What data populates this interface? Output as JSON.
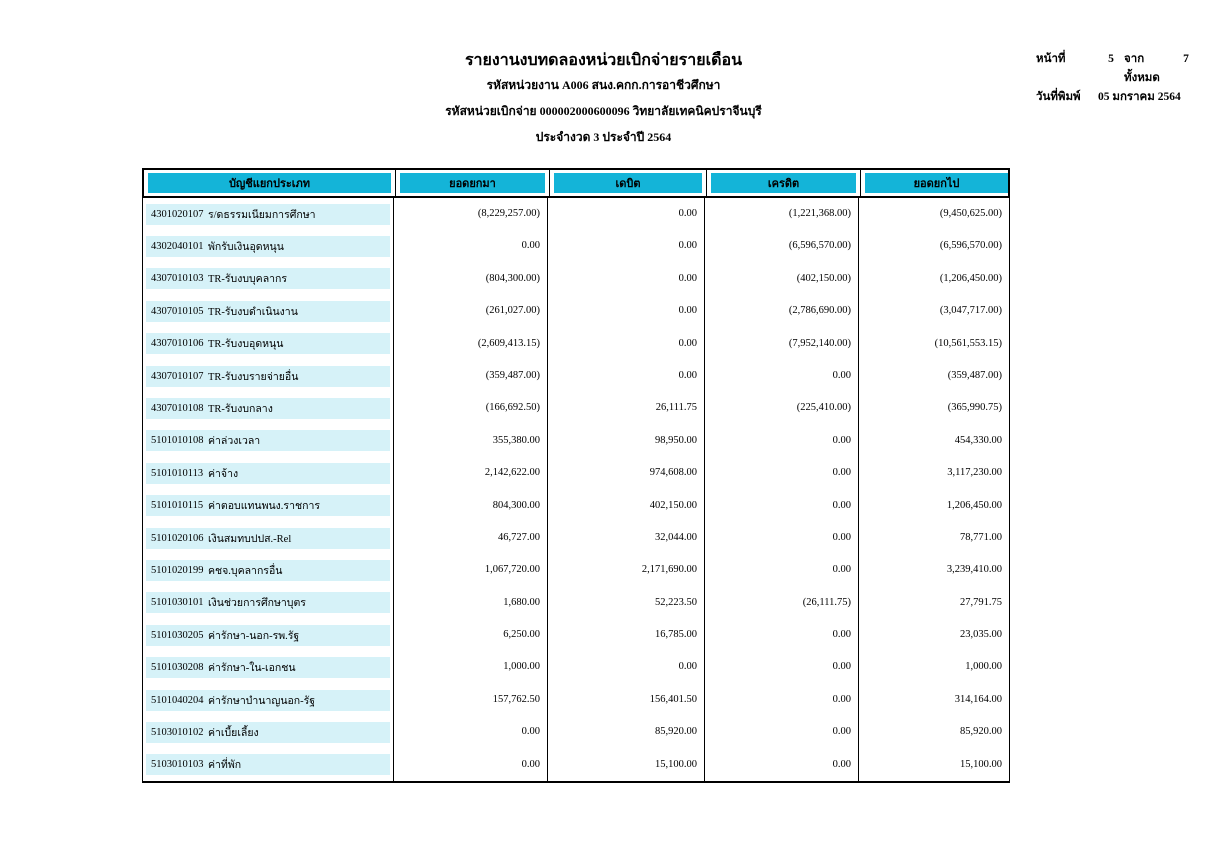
{
  "report": {
    "title": "รายงานงบทดลองหน่วยเบิกจ่ายรายเดือน",
    "agency_line": "รหัสหน่วยงาน A006 สนง.คกก.การอาชีวศึกษา",
    "disbursement_line": "รหัสหน่วยเบิกจ่าย 000002000600096 วิทยาลัยเทคนิคปราจีนบุรี",
    "period_line": "ประจำงวด 3 ประจำปี 2564"
  },
  "page_info": {
    "page_label": "หน้าที่",
    "page_number": "5",
    "total_label": "จากทั้งหมด",
    "total_pages": "7",
    "print_date_label": "วันที่พิมพ์",
    "print_date": "05 มกราคม 2564"
  },
  "colors": {
    "header_fill": "#14b4d8",
    "row_highlight": "#d6f2f8"
  },
  "table": {
    "columns": [
      "บัญชีแยกประเภท",
      "ยอดยกมา",
      "เดบิต",
      "เครดิต",
      "ยอดยกไป"
    ],
    "rows": [
      {
        "code": "4301020107",
        "name": "ร/ดธรรมเนียมการศึกษา",
        "balance_bf": "(8,229,257.00)",
        "debit": "0.00",
        "credit": "(1,221,368.00)",
        "balance_cf": "(9,450,625.00)"
      },
      {
        "code": "4302040101",
        "name": "พักรับเงินอุดหนุน",
        "balance_bf": "0.00",
        "debit": "0.00",
        "credit": "(6,596,570.00)",
        "balance_cf": "(6,596,570.00)"
      },
      {
        "code": "4307010103",
        "name": "TR-รับงบบุคลากร",
        "balance_bf": "(804,300.00)",
        "debit": "0.00",
        "credit": "(402,150.00)",
        "balance_cf": "(1,206,450.00)"
      },
      {
        "code": "4307010105",
        "name": "TR-รับงบดำเนินงาน",
        "balance_bf": "(261,027.00)",
        "debit": "0.00",
        "credit": "(2,786,690.00)",
        "balance_cf": "(3,047,717.00)"
      },
      {
        "code": "4307010106",
        "name": "TR-รับงบอุดหนุน",
        "balance_bf": "(2,609,413.15)",
        "debit": "0.00",
        "credit": "(7,952,140.00)",
        "balance_cf": "(10,561,553.15)"
      },
      {
        "code": "4307010107",
        "name": "TR-รับงบรายจ่ายอื่น",
        "balance_bf": "(359,487.00)",
        "debit": "0.00",
        "credit": "0.00",
        "balance_cf": "(359,487.00)"
      },
      {
        "code": "4307010108",
        "name": "TR-รับงบกลาง",
        "balance_bf": "(166,692.50)",
        "debit": "26,111.75",
        "credit": "(225,410.00)",
        "balance_cf": "(365,990.75)"
      },
      {
        "code": "5101010108",
        "name": "ค่าล่วงเวลา",
        "balance_bf": "355,380.00",
        "debit": "98,950.00",
        "credit": "0.00",
        "balance_cf": "454,330.00"
      },
      {
        "code": "5101010113",
        "name": "ค่าจ้าง",
        "balance_bf": "2,142,622.00",
        "debit": "974,608.00",
        "credit": "0.00",
        "balance_cf": "3,117,230.00"
      },
      {
        "code": "5101010115",
        "name": "ค่าตอบแทนพนง.ราชการ",
        "balance_bf": "804,300.00",
        "debit": "402,150.00",
        "credit": "0.00",
        "balance_cf": "1,206,450.00"
      },
      {
        "code": "5101020106",
        "name": "เงินสมทบปปส.-Rel",
        "balance_bf": "46,727.00",
        "debit": "32,044.00",
        "credit": "0.00",
        "balance_cf": "78,771.00"
      },
      {
        "code": "5101020199",
        "name": "คชจ.บุคลากรอื่น",
        "balance_bf": "1,067,720.00",
        "debit": "2,171,690.00",
        "credit": "0.00",
        "balance_cf": "3,239,410.00"
      },
      {
        "code": "5101030101",
        "name": "เงินช่วยการศึกษาบุตร",
        "balance_bf": "1,680.00",
        "debit": "52,223.50",
        "credit": "(26,111.75)",
        "balance_cf": "27,791.75"
      },
      {
        "code": "5101030205",
        "name": "ค่ารักษา-นอก-รพ.รัฐ",
        "balance_bf": "6,250.00",
        "debit": "16,785.00",
        "credit": "0.00",
        "balance_cf": "23,035.00"
      },
      {
        "code": "5101030208",
        "name": "ค่ารักษา-ใน-เอกชน",
        "balance_bf": "1,000.00",
        "debit": "0.00",
        "credit": "0.00",
        "balance_cf": "1,000.00"
      },
      {
        "code": "5101040204",
        "name": "ค่ารักษาบำนาญนอก-รัฐ",
        "balance_bf": "157,762.50",
        "debit": "156,401.50",
        "credit": "0.00",
        "balance_cf": "314,164.00"
      },
      {
        "code": "5103010102",
        "name": "ค่าเบี้ยเลี้ยง",
        "balance_bf": "0.00",
        "debit": "85,920.00",
        "credit": "0.00",
        "balance_cf": "85,920.00"
      },
      {
        "code": "5103010103",
        "name": "ค่าที่พัก",
        "balance_bf": "0.00",
        "debit": "15,100.00",
        "credit": "0.00",
        "balance_cf": "15,100.00"
      }
    ]
  }
}
